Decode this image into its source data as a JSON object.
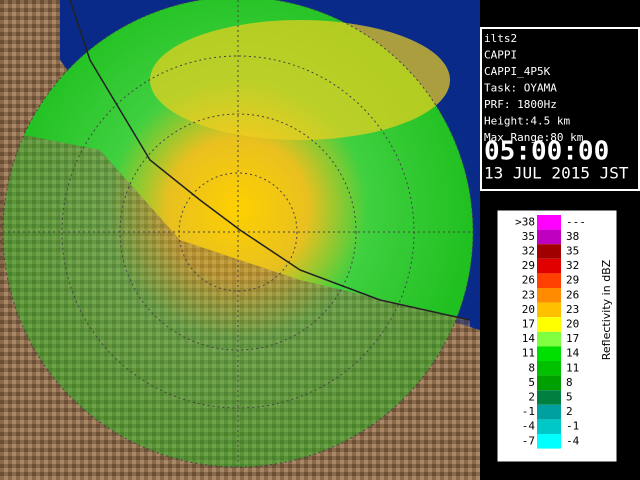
{
  "info": {
    "lines": [
      "ilts2",
      "CAPPI",
      "CAPPI_4P5K",
      "Task: OYAMA",
      "PRF: 1800Hz",
      "Height:4.5 km",
      "Max Range:80 km"
    ],
    "time": "05:00:00",
    "date": "13 JUL 2015 JST"
  },
  "legend": {
    "title": "Reflectivity in dBZ",
    "rows": [
      {
        "low": ">38",
        "high": "---",
        "color": "#ff00ff"
      },
      {
        "low": "35",
        "high": "38",
        "color": "#c000c0"
      },
      {
        "low": "32",
        "high": "35",
        "color": "#a00000"
      },
      {
        "low": "29",
        "high": "32",
        "color": "#e00000"
      },
      {
        "low": "26",
        "high": "29",
        "color": "#ff4000"
      },
      {
        "low": "23",
        "high": "26",
        "color": "#ff8c00"
      },
      {
        "low": "20",
        "high": "23",
        "color": "#ffc000"
      },
      {
        "low": "17",
        "high": "20",
        "color": "#ffff00"
      },
      {
        "low": "14",
        "high": "17",
        "color": "#80ff40"
      },
      {
        "low": "11",
        "high": "14",
        "color": "#00e000"
      },
      {
        "low": "8",
        "high": "11",
        "color": "#00c000"
      },
      {
        "low": "5",
        "high": "8",
        "color": "#00a000"
      },
      {
        "low": "2",
        "high": "5",
        "color": "#008040"
      },
      {
        "low": "-1",
        "high": "2",
        "color": "#00a0a0"
      },
      {
        "low": "-4",
        "high": "-1",
        "color": "#00c8c8"
      },
      {
        "low": "-7",
        "high": "-4",
        "color": "#00ffff"
      }
    ]
  }
}
